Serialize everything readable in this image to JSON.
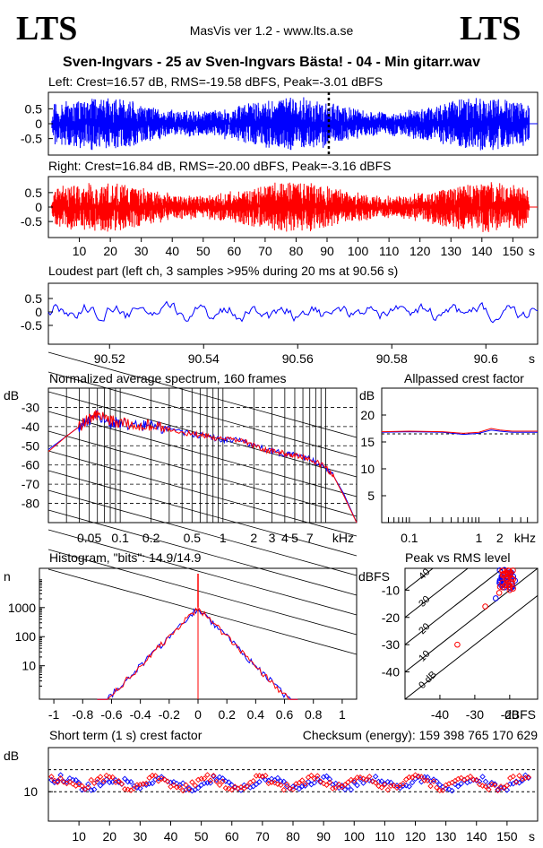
{
  "header": {
    "logo_left": "LTS",
    "logo_right": "LTS",
    "app_title": "MasVis ver 1.2 - www.lts.a.se",
    "file_title": "Sven-Ingvars - 25 av Sven-Ingvars Bästa! - 04 - Min gitarr.wav"
  },
  "colors": {
    "left": "#0000ff",
    "right": "#ff0000",
    "grid": "#000000",
    "background": "#ffffff"
  },
  "checksum": "Checksum (energy):   159 398 765 170 629",
  "chart_data": [
    {
      "id": "left_waveform",
      "type": "line",
      "title": "Left: Crest=16.57 dB, RMS=-19.58 dBFS, Peak=-3.01 dBFS",
      "ylabel": "",
      "xlabel": "",
      "yticks": [
        "0.5",
        "0",
        "-0.5"
      ],
      "ylim": [
        -1,
        1
      ],
      "xlim": [
        0,
        158
      ],
      "marker_x": 90.56,
      "series": [
        {
          "color": "#0000ff",
          "envelope": 0.98
        }
      ]
    },
    {
      "id": "right_waveform",
      "type": "line",
      "title": "Right: Crest=16.84 dB, RMS=-20.00 dBFS, Peak=-3.16 dBFS",
      "yticks": [
        "0.5",
        "0",
        "-0.5"
      ],
      "ylim": [
        -1,
        1
      ],
      "xlim": [
        0,
        158
      ],
      "xticks": [
        "10",
        "20",
        "30",
        "40",
        "50",
        "60",
        "70",
        "80",
        "90",
        "100",
        "110",
        "120",
        "130",
        "140",
        "150"
      ],
      "xunit": "s",
      "series": [
        {
          "color": "#ff0000",
          "envelope": 0.95
        }
      ]
    },
    {
      "id": "loudest_part",
      "type": "line",
      "title": "Loudest part (left  ch, 3 samples >95% during 20 ms at 90.56 s)",
      "yticks": [
        "0.5",
        "0",
        "-0.5"
      ],
      "ylim": [
        -1,
        1
      ],
      "xlim": [
        90.507,
        90.611
      ],
      "xticks": [
        "90.52",
        "90.54",
        "90.56",
        "90.58",
        "90.6"
      ],
      "xunit": "s",
      "series": [
        {
          "color": "#0000ff"
        }
      ]
    },
    {
      "id": "spectrum",
      "type": "line",
      "title": "Normalized average spectrum, 160 frames",
      "ylabel": "dB",
      "yticks": [
        "-30",
        "-40",
        "-50",
        "-60",
        "-70",
        "-80"
      ],
      "ylim": [
        -90,
        -20
      ],
      "xscale": "log",
      "xlim": [
        0.02,
        20
      ],
      "xticks": [
        "0.05",
        "0.1",
        "0.2",
        "0.5",
        "1",
        "2",
        "3",
        "4",
        "5",
        "7"
      ],
      "xunit": "kHz",
      "series": [
        {
          "name": "",
          "color": "#0000ff",
          "x": [
            0.02,
            0.03,
            0.04,
            0.05,
            0.06,
            0.08,
            0.1,
            0.15,
            0.2,
            0.3,
            0.5,
            0.7,
            1,
            1.5,
            2,
            3,
            4,
            5,
            7,
            10,
            12,
            15,
            20
          ],
          "y": [
            -52,
            -45,
            -40,
            -37,
            -34,
            -38,
            -38,
            -40,
            -39,
            -42,
            -44,
            -45,
            -47,
            -47,
            -50,
            -53,
            -54,
            -55,
            -57,
            -61,
            -66,
            -75,
            -90
          ]
        },
        {
          "name": "",
          "color": "#ff0000",
          "x": [
            0.02,
            0.03,
            0.04,
            0.05,
            0.06,
            0.08,
            0.1,
            0.15,
            0.2,
            0.3,
            0.5,
            0.7,
            1,
            1.5,
            2,
            3,
            4,
            5,
            7,
            10,
            12,
            15,
            20
          ],
          "y": [
            -53,
            -45,
            -40,
            -36,
            -34,
            -37,
            -38,
            -40,
            -39,
            -42,
            -44,
            -45,
            -47,
            -47,
            -50,
            -53,
            -54,
            -55,
            -57,
            -61,
            -66,
            -76,
            -90
          ]
        }
      ]
    },
    {
      "id": "allpassed_crest",
      "type": "line",
      "title": "Allpassed crest factor",
      "ylabel": "dB",
      "yticks": [
        "20",
        "15",
        "10",
        "5"
      ],
      "ylim": [
        0,
        25
      ],
      "xscale": "log",
      "xlim": [
        0.04,
        7
      ],
      "xticks": [
        "0.1",
        "1",
        "2"
      ],
      "xunit": "kHz",
      "reference": 16.5,
      "series": [
        {
          "color": "#0000ff",
          "x": [
            0.04,
            0.1,
            0.3,
            0.6,
            1,
            1.5,
            2,
            3,
            7
          ],
          "y": [
            16.8,
            16.9,
            16.8,
            16.4,
            16.6,
            17.2,
            17.0,
            16.8,
            16.8
          ]
        },
        {
          "color": "#ff0000",
          "x": [
            0.04,
            0.1,
            0.3,
            0.6,
            1,
            1.5,
            2,
            3,
            7
          ],
          "y": [
            16.9,
            17.0,
            16.9,
            16.6,
            16.8,
            17.5,
            17.2,
            17.0,
            17.0
          ]
        }
      ]
    },
    {
      "id": "histogram",
      "type": "line",
      "title": "Histogram, \"bits\": 14.9/14.9",
      "ylabel": "n",
      "yticks": [
        "1000",
        "100",
        "10"
      ],
      "yscale": "log",
      "xticks": [
        "-1",
        "-0.8",
        "-0.6",
        "-0.4",
        "-0.2",
        "0",
        "0.2",
        "0.4",
        "0.6",
        "0.8",
        "1"
      ],
      "xlim": [
        -1.1,
        1.1
      ],
      "series": [
        {
          "color": "#0000ff",
          "x": [
            -0.7,
            -0.6,
            -0.5,
            -0.4,
            -0.3,
            -0.2,
            -0.1,
            0,
            0.1,
            0.2,
            0.3,
            0.4,
            0.5,
            0.6,
            0.7
          ],
          "y": [
            1,
            3,
            10,
            40,
            120,
            300,
            600,
            1000,
            600,
            300,
            120,
            40,
            10,
            3,
            1
          ]
        },
        {
          "color": "#ff0000",
          "x": [
            -0.7,
            -0.6,
            -0.5,
            -0.4,
            -0.3,
            -0.2,
            -0.1,
            0,
            0.1,
            0.2,
            0.3,
            0.4,
            0.5,
            0.6,
            0.7
          ],
          "y": [
            1,
            3,
            10,
            40,
            120,
            300,
            600,
            1000,
            600,
            300,
            120,
            40,
            10,
            3,
            1
          ]
        }
      ]
    },
    {
      "id": "peak_vs_rms",
      "type": "scatter",
      "title": "Peak vs RMS level",
      "ylabel": "dBFS",
      "xlabel": "dBFS",
      "yticks": [
        "-10",
        "-20",
        "-30",
        "-40"
      ],
      "ylim": [
        -50,
        -2
      ],
      "xticks": [
        "-40",
        "-30",
        "-20"
      ],
      "xlim": [
        -50,
        -12
      ],
      "diagonal_labels": [
        "40",
        "30",
        "20",
        "10",
        "0 dB"
      ],
      "series": [
        {
          "color": "#0000ff",
          "x": [
            -21,
            -20,
            -19.5,
            -20.5,
            -19,
            -22,
            -20,
            -18.5,
            -21.5,
            -24
          ],
          "y": [
            -5,
            -4,
            -6,
            -7,
            -5,
            -8,
            -3.5,
            -6.5,
            -9,
            -13
          ]
        },
        {
          "color": "#ff0000",
          "x": [
            -21,
            -20.5,
            -20,
            -19.5,
            -22,
            -21,
            -19,
            -20,
            -23,
            -27,
            -35
          ],
          "y": [
            -6,
            -5,
            -4.5,
            -7,
            -9,
            -8,
            -6,
            -10,
            -11,
            -16,
            -30
          ]
        }
      ]
    },
    {
      "id": "short_term_crest",
      "type": "scatter",
      "title": "Short term (1 s) crest factor",
      "ylabel": "dB",
      "yticks": [
        "10"
      ],
      "ylim": [
        0,
        25
      ],
      "xlim": [
        0,
        160
      ],
      "xticks": [
        "10",
        "20",
        "30",
        "40",
        "50",
        "60",
        "70",
        "80",
        "90",
        "100",
        "110",
        "120",
        "130",
        "140",
        "150"
      ],
      "xunit": "s",
      "dashed_lines": [
        10,
        17.5
      ],
      "series": [
        {
          "color": "#0000ff",
          "mean": 13
        },
        {
          "color": "#ff0000",
          "mean": 13
        }
      ]
    }
  ]
}
